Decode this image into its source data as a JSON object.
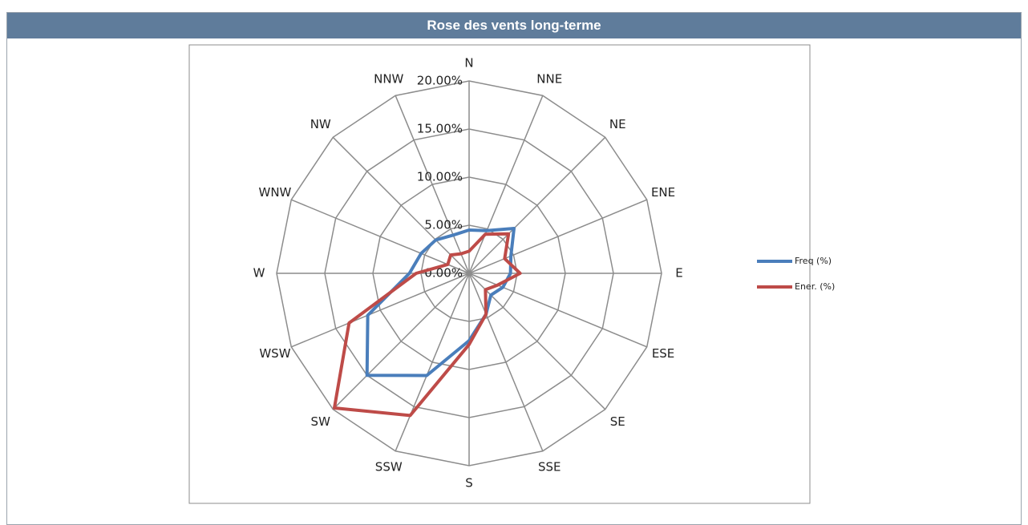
{
  "header": {
    "title": "Rose des vents long-terme"
  },
  "chart_data": {
    "type": "radar",
    "categories": [
      "N",
      "NNE",
      "NE",
      "ENE",
      "E",
      "ESE",
      "SE",
      "SSE",
      "S",
      "SSW",
      "SW",
      "WSW",
      "W",
      "WNW",
      "NW",
      "NNW"
    ],
    "series": [
      {
        "name": "Freq (%)",
        "color": "#4a7ebb",
        "values": [
          4.5,
          4.8,
          6.6,
          4.7,
          4.3,
          3.8,
          3.2,
          4.6,
          7.0,
          11.5,
          15.0,
          11.4,
          6.2,
          5.4,
          4.9,
          4.3
        ]
      },
      {
        "name": "Ener. (%)",
        "color": "#be4b48",
        "values": [
          2.3,
          4.4,
          5.8,
          4.0,
          5.3,
          3.2,
          2.4,
          4.6,
          7.4,
          16.0,
          19.8,
          13.5,
          5.5,
          2.4,
          2.7,
          2.2
        ]
      }
    ],
    "rlim": [
      0,
      20
    ],
    "rticks": [
      {
        "value": 0,
        "label": "0.00%"
      },
      {
        "value": 5,
        "label": "5.00%"
      },
      {
        "value": 10,
        "label": "10.00%"
      },
      {
        "value": 15,
        "label": "15.00%"
      },
      {
        "value": 20,
        "label": "20.00%"
      }
    ],
    "grid": true,
    "legend": "right"
  }
}
